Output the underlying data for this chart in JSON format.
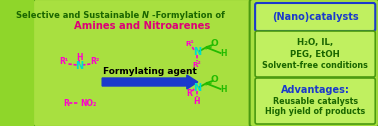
{
  "overall_bg": "#8fd62a",
  "panel_bg": "#a8e040",
  "panel_edge": "#4a9a10",
  "nano_box_edge": "#1a3acc",
  "nano_box_bg": "#c0f060",
  "mid_box_bg": "#c0f060",
  "adv_box_bg": "#c0f060",
  "title1_color": "#1a6600",
  "title2_color": "#dd0077",
  "text_green": "#1a6600",
  "text_blue": "#1a3acc",
  "magenta": "#ff00cc",
  "cyan_n": "#00ddcc",
  "bright_green": "#22bb00",
  "arrow_color": "#1a3acc",
  "arrow_label": "Formylating agent",
  "nano_text": "(Nano)catalysts",
  "sol_lines": [
    "H₂O, IL,",
    "PEG, EtOH",
    "Solvent-free conditions"
  ],
  "adv_title": "Advantages:",
  "adv_lines": [
    "Reusable catalysts",
    "High yield of products"
  ]
}
